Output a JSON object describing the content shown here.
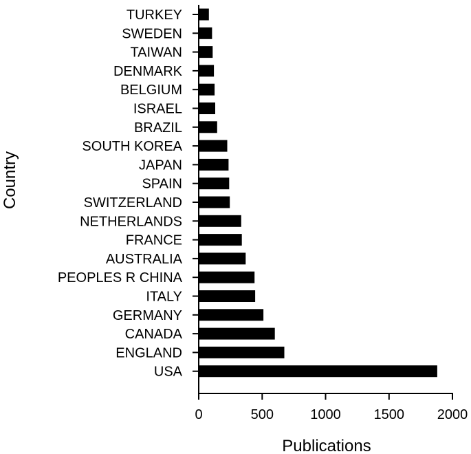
{
  "chart_data": {
    "type": "bar",
    "orientation": "horizontal",
    "categories": [
      "TURKEY",
      "SWEDEN",
      "TAIWAN",
      "DENMARK",
      "BELGIUM",
      "ISRAEL",
      "BRAZIL",
      "SOUTH KOREA",
      "JAPAN",
      "SPAIN",
      "SWITZERLAND",
      "NETHERLANDS",
      "FRANCE",
      "AUSTRALIA",
      "PEOPLES R CHINA",
      "ITALY",
      "GERMANY",
      "CANADA",
      "ENGLAND",
      "USA"
    ],
    "values": [
      80,
      105,
      110,
      120,
      125,
      130,
      145,
      225,
      235,
      240,
      245,
      335,
      340,
      370,
      440,
      445,
      510,
      600,
      675,
      1880
    ],
    "xlabel": "Publications",
    "ylabel": "Country",
    "xlim": [
      0,
      2000
    ],
    "xticks": [
      0,
      500,
      1000,
      1500,
      2000
    ],
    "grid": false,
    "legend": "none",
    "bar_color": "#000000"
  }
}
